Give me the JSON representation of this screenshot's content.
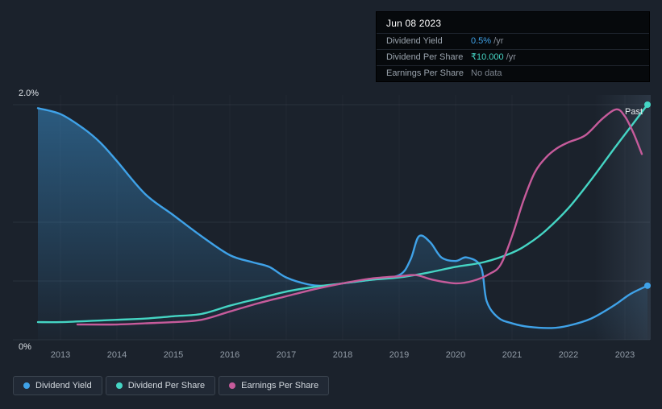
{
  "tooltip": {
    "date": "Jun 08 2023",
    "rows": [
      {
        "label": "Dividend Yield",
        "value": "0.5%",
        "suffix": " /yr",
        "color": "#3fa2e8"
      },
      {
        "label": "Dividend Per Share",
        "value": "₹10.000",
        "suffix": " /yr",
        "color": "#45d5c4"
      },
      {
        "label": "Earnings Per Share",
        "value": "No data",
        "suffix": "",
        "color": "#7c848e"
      }
    ]
  },
  "legend": {
    "items": [
      {
        "label": "Dividend Yield",
        "color": "#3fa2e8"
      },
      {
        "label": "Dividend Per Share",
        "color": "#45d5c4"
      },
      {
        "label": "Earnings Per Share",
        "color": "#c65b9b"
      }
    ]
  },
  "chart_data": {
    "type": "line",
    "title": "",
    "x_ticks": [
      "2013",
      "2014",
      "2015",
      "2016",
      "2017",
      "2018",
      "2019",
      "2020",
      "2021",
      "2022",
      "2023"
    ],
    "x_range": [
      2012.55,
      2023.45
    ],
    "y_axis": {
      "min": 0,
      "max": 2.0,
      "top_label": "2.0%",
      "bottom_label": "0%",
      "gridline_values": [
        0,
        0.5,
        1.0,
        2.0
      ]
    },
    "annotations": {
      "past_label": "Past"
    },
    "colors": {
      "background": "#1b222c",
      "gridline": "#2a313c"
    },
    "series": [
      {
        "name": "Dividend Yield",
        "color": "#3fa2e8",
        "area": true,
        "end_dot": true,
        "points": [
          [
            2012.6,
            1.97
          ],
          [
            2013,
            1.92
          ],
          [
            2013.4,
            1.8
          ],
          [
            2013.7,
            1.68
          ],
          [
            2014,
            1.52
          ],
          [
            2014.5,
            1.24
          ],
          [
            2015,
            1.06
          ],
          [
            2015.5,
            0.88
          ],
          [
            2016,
            0.72
          ],
          [
            2016.4,
            0.66
          ],
          [
            2016.7,
            0.62
          ],
          [
            2017,
            0.53
          ],
          [
            2017.4,
            0.47
          ],
          [
            2017.7,
            0.46
          ],
          [
            2018,
            0.48
          ],
          [
            2018.5,
            0.51
          ],
          [
            2019,
            0.55
          ],
          [
            2019.2,
            0.68
          ],
          [
            2019.35,
            0.88
          ],
          [
            2019.55,
            0.83
          ],
          [
            2019.75,
            0.7
          ],
          [
            2020,
            0.67
          ],
          [
            2020.2,
            0.7
          ],
          [
            2020.45,
            0.62
          ],
          [
            2020.55,
            0.33
          ],
          [
            2020.75,
            0.19
          ],
          [
            2021,
            0.14
          ],
          [
            2021.3,
            0.11
          ],
          [
            2021.7,
            0.1
          ],
          [
            2022,
            0.12
          ],
          [
            2022.4,
            0.18
          ],
          [
            2022.8,
            0.29
          ],
          [
            2023.1,
            0.39
          ],
          [
            2023.4,
            0.46
          ]
        ]
      },
      {
        "name": "Dividend Per Share",
        "color": "#45d5c4",
        "area": false,
        "end_dot": true,
        "points": [
          [
            2012.6,
            0.15
          ],
          [
            2013,
            0.15
          ],
          [
            2013.5,
            0.16
          ],
          [
            2014,
            0.17
          ],
          [
            2014.5,
            0.18
          ],
          [
            2015,
            0.2
          ],
          [
            2015.5,
            0.22
          ],
          [
            2016,
            0.29
          ],
          [
            2016.5,
            0.35
          ],
          [
            2017,
            0.41
          ],
          [
            2017.5,
            0.45
          ],
          [
            2018,
            0.48
          ],
          [
            2018.5,
            0.51
          ],
          [
            2019,
            0.53
          ],
          [
            2019.5,
            0.57
          ],
          [
            2020,
            0.62
          ],
          [
            2020.5,
            0.66
          ],
          [
            2021,
            0.74
          ],
          [
            2021.3,
            0.82
          ],
          [
            2021.6,
            0.93
          ],
          [
            2022,
            1.12
          ],
          [
            2022.4,
            1.36
          ],
          [
            2022.8,
            1.62
          ],
          [
            2023.1,
            1.81
          ],
          [
            2023.4,
            2.0
          ]
        ]
      },
      {
        "name": "Earnings Per Share",
        "color": "#c65b9b",
        "area": false,
        "end_dot": false,
        "points": [
          [
            2013.3,
            0.13
          ],
          [
            2014,
            0.13
          ],
          [
            2014.5,
            0.14
          ],
          [
            2015,
            0.15
          ],
          [
            2015.5,
            0.17
          ],
          [
            2016,
            0.24
          ],
          [
            2016.5,
            0.31
          ],
          [
            2017,
            0.37
          ],
          [
            2017.5,
            0.43
          ],
          [
            2018,
            0.48
          ],
          [
            2018.5,
            0.52
          ],
          [
            2019,
            0.54
          ],
          [
            2019.3,
            0.55
          ],
          [
            2019.6,
            0.51
          ],
          [
            2020,
            0.48
          ],
          [
            2020.3,
            0.5
          ],
          [
            2020.6,
            0.56
          ],
          [
            2020.8,
            0.64
          ],
          [
            2021,
            0.88
          ],
          [
            2021.2,
            1.18
          ],
          [
            2021.4,
            1.42
          ],
          [
            2021.6,
            1.55
          ],
          [
            2021.8,
            1.63
          ],
          [
            2022,
            1.68
          ],
          [
            2022.3,
            1.74
          ],
          [
            2022.6,
            1.88
          ],
          [
            2022.85,
            1.96
          ],
          [
            2023,
            1.9
          ],
          [
            2023.15,
            1.76
          ],
          [
            2023.3,
            1.58
          ]
        ]
      }
    ]
  }
}
